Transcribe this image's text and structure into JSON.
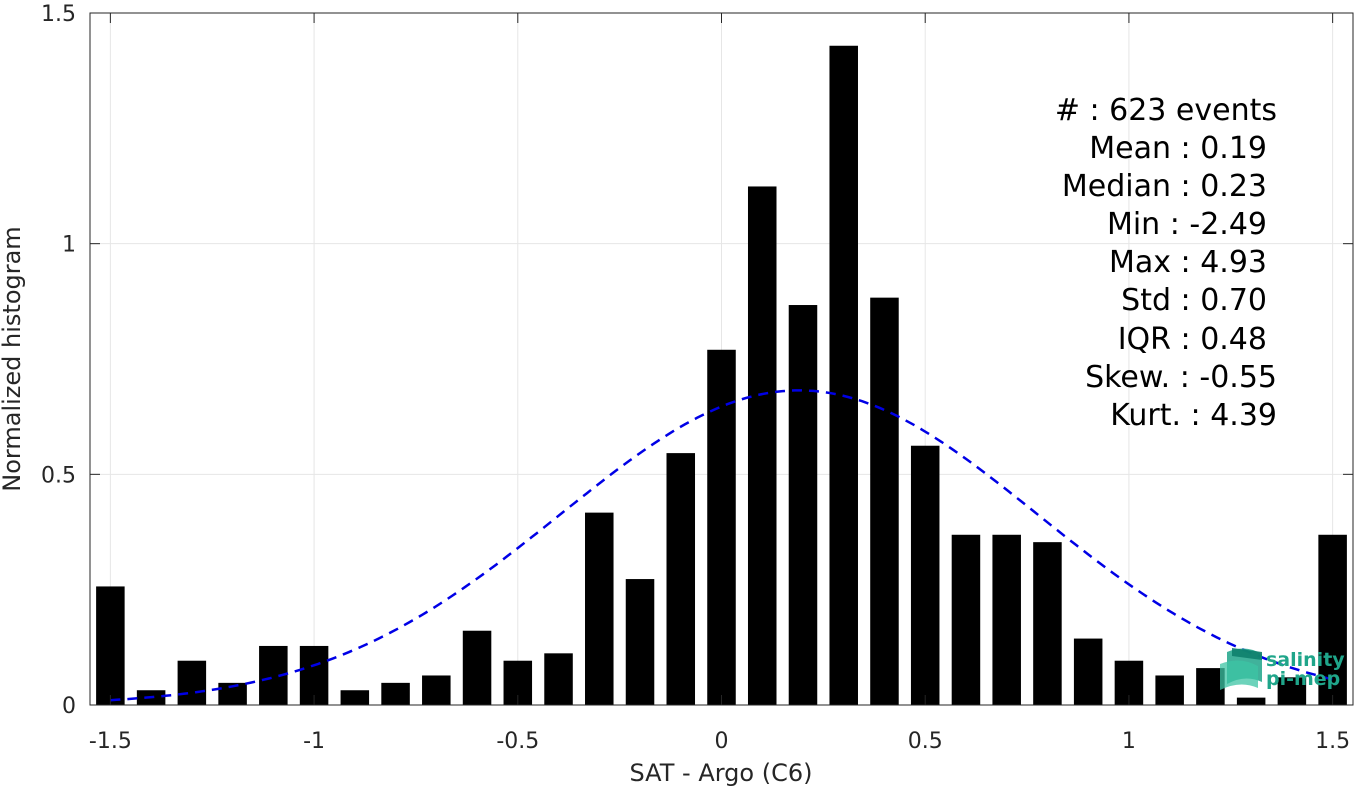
{
  "colors": {
    "bars": "#000000",
    "fit": "#0000e6",
    "grid": "#e6e6e6",
    "axis": "#262626",
    "logo": "#1fa58a"
  },
  "chart_data": {
    "type": "bar",
    "xlabel": "SAT - Argo (C6)",
    "ylabel": "Normalized histogram",
    "xlim": [
      -1.55,
      1.55
    ],
    "ylim": [
      0,
      1.5
    ],
    "grid": true,
    "xticks": [
      -1.5,
      -1,
      -0.5,
      0,
      0.5,
      1,
      1.5
    ],
    "xtick_labels": [
      "-1.5",
      "-1",
      "-0.5",
      "0",
      "0.5",
      "1",
      "1.5"
    ],
    "yticks": [
      0,
      0.5,
      1,
      1.5
    ],
    "ytick_labels": [
      "0",
      "0.5",
      "1",
      "1.5"
    ],
    "bin_centers": [
      -1.5,
      -1.4,
      -1.3,
      -1.2,
      -1.1,
      -1.0,
      -0.9,
      -0.8,
      -0.7,
      -0.6,
      -0.5,
      -0.4,
      -0.3,
      -0.2,
      -0.1,
      0.0,
      0.1,
      0.2,
      0.3,
      0.4,
      0.5,
      0.6,
      0.7,
      0.8,
      0.9,
      1.0,
      1.1,
      1.2,
      1.3,
      1.4,
      1.5
    ],
    "values": [
      0.257,
      0.032,
      0.096,
      0.048,
      0.128,
      0.128,
      0.032,
      0.048,
      0.064,
      0.161,
      0.096,
      0.112,
      0.417,
      0.273,
      0.546,
      0.77,
      1.124,
      0.867,
      1.429,
      0.883,
      0.562,
      0.369,
      0.369,
      0.353,
      0.144,
      0.096,
      0.064,
      0.08,
      0.016,
      0.06,
      0.369
    ],
    "fit_curve": {
      "style": "dashed",
      "mean": 0.19,
      "std": 0.585,
      "peak": 0.682,
      "x_range": [
        -1.5,
        1.5
      ]
    },
    "annotations": [
      "#  : 623 events",
      "Mean : 0.19",
      "Median : 0.23",
      "Min : -2.49",
      "Max : 4.93",
      "Std : 0.70",
      "IQR : 0.48",
      "Skew. : -0.55",
      "Kurt. : 4.39"
    ]
  },
  "logo": {
    "line1": "salinity",
    "line2": "pi-mep"
  }
}
